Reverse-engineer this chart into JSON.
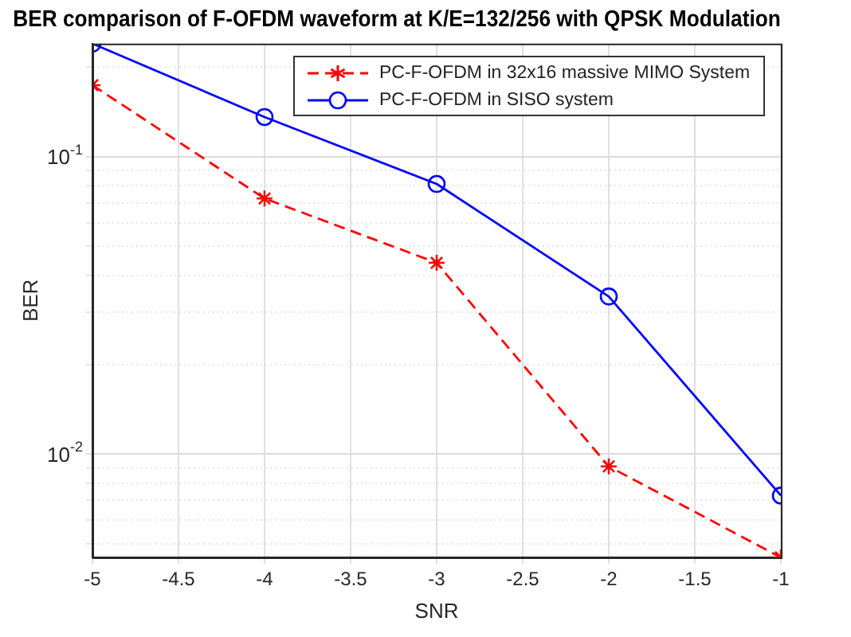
{
  "chart_data": {
    "type": "line",
    "title": "BER comparison of F-OFDM waveform at K/E=132/256 with QPSK Modulation",
    "xlabel": "SNR",
    "ylabel": "BER",
    "log": "y",
    "grid": true,
    "legend": "top right",
    "x": [
      -5,
      -4,
      -3,
      -2,
      -1
    ],
    "xlim": [
      -5,
      -1
    ],
    "xticks": [
      -5,
      -4.5,
      -4,
      -3.5,
      -3,
      -2.5,
      -2,
      -1.5,
      -1
    ],
    "ylim": [
      0.0045,
      0.24
    ],
    "yticks": [
      {
        "value": 0.005,
        "label": null
      },
      {
        "value": 0.006,
        "label": null
      },
      {
        "value": 0.007,
        "label": null
      },
      {
        "value": 0.008,
        "label": null
      },
      {
        "value": 0.009,
        "label": null
      },
      {
        "value": 0.01,
        "label": "10$^{-2}$"
      },
      {
        "value": 0.02,
        "label": null
      },
      {
        "value": 0.03,
        "label": null
      },
      {
        "value": 0.04,
        "label": null
      },
      {
        "value": 0.05,
        "label": null
      },
      {
        "value": 0.06,
        "label": null
      },
      {
        "value": 0.07,
        "label": null
      },
      {
        "value": 0.08,
        "label": null
      },
      {
        "value": 0.09,
        "label": null
      },
      {
        "value": 0.1,
        "label": "10$^{-1}$"
      },
      {
        "value": 0.2,
        "label": null
      }
    ],
    "series": [
      {
        "name": "PC-F-OFDM in 32x16 massive MIMO System",
        "color": "#ff0000",
        "marker": "cross",
        "line_style": "dashed",
        "values": [
          0.174,
          0.0724,
          0.044,
          0.0091,
          0.0045
        ]
      },
      {
        "name": "PC-F-OFDM in SISO system",
        "color": "#0000ff",
        "marker": "circle",
        "line_style": "solid",
        "values": [
          0.24,
          0.136,
          0.081,
          0.0339,
          0.00726
        ]
      }
    ]
  }
}
